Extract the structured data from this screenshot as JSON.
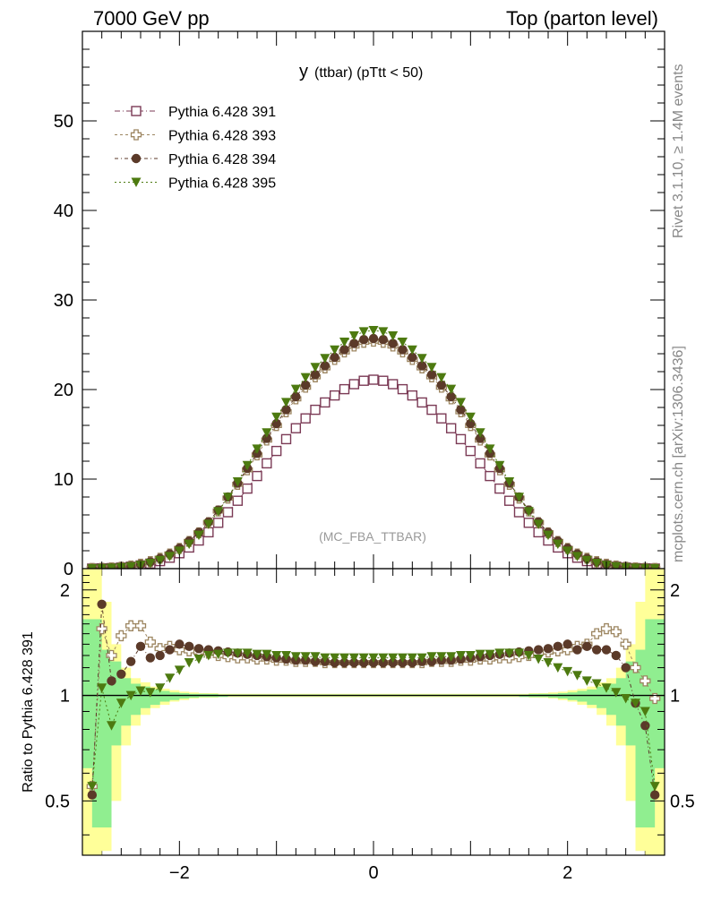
{
  "header": {
    "left": "7000 GeV pp",
    "right": "Top (parton level)"
  },
  "side_text": {
    "rivet": "Rivet 3.1.10, ≥ 1.4M events",
    "mcplots": "mcplots.cern.ch [arXiv:1306.3436]"
  },
  "chart_data": [
    {
      "type": "scatter",
      "title_main": "y",
      "title_sub": "(ttbar)  (pTtt < 50)",
      "annotation": "(MC_FBA_TTBAR)",
      "xlim": [
        -3.0,
        3.0
      ],
      "ylim": [
        0,
        60
      ],
      "yticks": [
        0,
        10,
        20,
        30,
        40,
        50
      ],
      "ytick_labels": [
        "0",
        "10",
        "20",
        "30",
        "40",
        "50"
      ],
      "legend_position": "top-left",
      "colors": {
        "s391": "#7b3a55",
        "s393": "#9c8560",
        "s394": "#5b3a29",
        "s395": "#4d7a10"
      },
      "x": [
        -2.9,
        -2.8,
        -2.7,
        -2.6,
        -2.5,
        -2.4,
        -2.3,
        -2.2,
        -2.1,
        -2.0,
        -1.9,
        -1.8,
        -1.7,
        -1.6,
        -1.5,
        -1.4,
        -1.3,
        -1.2,
        -1.1,
        -1.0,
        -0.9,
        -0.8,
        -0.7,
        -0.6,
        -0.5,
        -0.4,
        -0.3,
        -0.2,
        -0.1,
        0.0,
        0.1,
        0.2,
        0.3,
        0.4,
        0.5,
        0.6,
        0.7,
        0.8,
        0.9,
        1.0,
        1.1,
        1.2,
        1.3,
        1.4,
        1.5,
        1.6,
        1.7,
        1.8,
        1.9,
        2.0,
        2.1,
        2.2,
        2.3,
        2.4,
        2.5,
        2.6,
        2.7,
        2.8,
        2.9
      ],
      "series": [
        {
          "name": "Pythia 6.428 391",
          "marker": "open-square",
          "values": [
            0.01,
            0.03,
            0.06,
            0.12,
            0.22,
            0.36,
            0.56,
            0.84,
            1.22,
            1.72,
            2.36,
            3.14,
            4.06,
            5.12,
            6.3,
            7.58,
            8.94,
            10.34,
            11.76,
            13.14,
            14.46,
            15.68,
            16.78,
            17.74,
            18.56,
            19.34,
            20.04,
            20.6,
            20.98,
            21.1,
            20.98,
            20.6,
            20.04,
            19.34,
            18.56,
            17.74,
            16.78,
            15.68,
            14.46,
            13.14,
            11.76,
            10.34,
            8.94,
            7.58,
            6.3,
            5.12,
            4.06,
            3.14,
            2.36,
            1.72,
            1.22,
            0.84,
            0.56,
            0.36,
            0.22,
            0.12,
            0.06,
            0.03,
            0.01
          ]
        },
        {
          "name": "Pythia 6.428 393",
          "marker": "open-cross",
          "values": [
            0.02,
            0.04,
            0.08,
            0.16,
            0.3,
            0.5,
            0.78,
            1.16,
            1.64,
            2.26,
            3.04,
            4.0,
            5.14,
            6.44,
            7.88,
            9.42,
            11.04,
            12.7,
            14.36,
            15.98,
            17.52,
            18.96,
            20.26,
            21.42,
            22.42,
            23.36,
            24.2,
            24.86,
            25.28,
            25.4,
            25.28,
            24.86,
            24.2,
            23.36,
            22.42,
            21.42,
            20.26,
            18.96,
            17.52,
            15.98,
            14.36,
            12.7,
            11.04,
            9.42,
            7.88,
            6.44,
            5.14,
            4.0,
            3.04,
            2.26,
            1.64,
            1.16,
            0.78,
            0.5,
            0.3,
            0.16,
            0.08,
            0.04,
            0.02
          ]
        },
        {
          "name": "Pythia 6.428 394",
          "marker": "filled-circle",
          "values": [
            0.02,
            0.05,
            0.08,
            0.15,
            0.28,
            0.48,
            0.76,
            1.14,
            1.64,
            2.28,
            3.08,
            4.06,
            5.22,
            6.54,
            8.0,
            9.56,
            11.2,
            12.88,
            14.56,
            16.2,
            17.76,
            19.2,
            20.5,
            21.66,
            22.66,
            23.6,
            24.46,
            25.14,
            25.58,
            25.7,
            25.58,
            25.14,
            24.46,
            23.6,
            22.66,
            21.66,
            20.5,
            19.2,
            17.76,
            16.2,
            14.56,
            12.88,
            11.2,
            9.56,
            8.0,
            6.54,
            5.22,
            4.06,
            3.08,
            2.28,
            1.64,
            1.14,
            0.76,
            0.48,
            0.28,
            0.15,
            0.08,
            0.05,
            0.02
          ]
        },
        {
          "name": "Pythia 6.428 395",
          "marker": "filled-triangle-down",
          "values": [
            0.01,
            0.03,
            0.06,
            0.12,
            0.22,
            0.38,
            0.6,
            0.92,
            1.36,
            1.96,
            2.74,
            3.74,
            4.96,
            6.38,
            7.98,
            9.7,
            11.52,
            13.36,
            15.18,
            16.92,
            18.56,
            20.04,
            21.34,
            22.48,
            23.48,
            24.42,
            25.3,
            26.0,
            26.46,
            26.6,
            26.46,
            26.0,
            25.3,
            24.42,
            23.48,
            22.48,
            21.34,
            20.04,
            18.56,
            16.92,
            15.18,
            13.36,
            11.52,
            9.7,
            7.98,
            6.38,
            4.96,
            3.74,
            2.74,
            1.96,
            1.36,
            0.92,
            0.6,
            0.38,
            0.22,
            0.12,
            0.06,
            0.03,
            0.01
          ]
        }
      ]
    },
    {
      "type": "scatter",
      "ylabel": "Ratio to Pythia 6.428 391",
      "xlim": [
        -3.0,
        3.0
      ],
      "ylim": [
        0.35,
        2.3
      ],
      "yscale": "log",
      "xticks": [
        -2,
        0,
        2
      ],
      "xtick_labels": [
        "−2",
        "0",
        "2"
      ],
      "yticks": [
        0.5,
        1,
        2
      ],
      "ytick_labels": [
        "0.5",
        "1",
        "2"
      ],
      "reference_line": 1,
      "band_colors": {
        "inner": "#90ee90",
        "outer": "#ffff99"
      },
      "x": [
        -2.9,
        -2.8,
        -2.7,
        -2.6,
        -2.5,
        -2.4,
        -2.3,
        -2.2,
        -2.1,
        -2.0,
        -1.9,
        -1.8,
        -1.7,
        -1.6,
        -1.5,
        -1.4,
        -1.3,
        -1.2,
        -1.1,
        -1.0,
        -0.9,
        -0.8,
        -0.7,
        -0.6,
        -0.5,
        -0.4,
        -0.3,
        -0.2,
        -0.1,
        0.0,
        0.1,
        0.2,
        0.3,
        0.4,
        0.5,
        0.6,
        0.7,
        0.8,
        0.9,
        1.0,
        1.1,
        1.2,
        1.3,
        1.4,
        1.5,
        1.6,
        1.7,
        1.8,
        1.9,
        2.0,
        2.1,
        2.2,
        2.3,
        2.4,
        2.5,
        2.6,
        2.7,
        2.8,
        2.9
      ],
      "band": {
        "inner": [
          0.62,
          0.42,
          0.72,
          0.82,
          0.88,
          0.92,
          0.94,
          0.96,
          0.97,
          0.98,
          0.985,
          0.99,
          0.99,
          0.99,
          0.995,
          0.995,
          0.995,
          0.995,
          0.995,
          0.995,
          0.995,
          0.995,
          0.995,
          0.995,
          0.995,
          0.995,
          0.995,
          0.995,
          0.995,
          0.995,
          0.995,
          0.995,
          0.995,
          0.995,
          0.995,
          0.995,
          0.995,
          0.995,
          0.995,
          0.995,
          0.995,
          0.995,
          0.995,
          0.995,
          0.995,
          0.99,
          0.99,
          0.99,
          0.985,
          0.98,
          0.97,
          0.96,
          0.94,
          0.92,
          0.88,
          0.82,
          0.72,
          0.42,
          0.62
        ],
        "outer": [
          0.35,
          0.36,
          0.5,
          0.72,
          0.82,
          0.88,
          0.92,
          0.94,
          0.96,
          0.97,
          0.98,
          0.985,
          0.985,
          0.99,
          0.99,
          0.99,
          0.99,
          0.99,
          0.99,
          0.99,
          0.99,
          0.99,
          0.99,
          0.99,
          0.99,
          0.99,
          0.99,
          0.99,
          0.99,
          0.99,
          0.99,
          0.99,
          0.99,
          0.99,
          0.99,
          0.99,
          0.99,
          0.99,
          0.99,
          0.99,
          0.99,
          0.99,
          0.99,
          0.99,
          0.99,
          0.99,
          0.985,
          0.985,
          0.98,
          0.97,
          0.96,
          0.94,
          0.92,
          0.88,
          0.82,
          0.72,
          0.5,
          0.36,
          0.35
        ],
        "inner_hi": [
          1.65,
          1.35,
          1.25,
          1.12,
          1.08,
          1.06,
          1.04,
          1.03,
          1.02,
          1.015,
          1.01,
          1.01,
          1.01,
          1.005,
          1.005,
          1.005,
          1.005,
          1.005,
          1.005,
          1.005,
          1.005,
          1.005,
          1.005,
          1.005,
          1.005,
          1.005,
          1.005,
          1.005,
          1.005,
          1.005,
          1.005,
          1.005,
          1.005,
          1.005,
          1.005,
          1.005,
          1.005,
          1.005,
          1.005,
          1.005,
          1.005,
          1.005,
          1.005,
          1.005,
          1.005,
          1.005,
          1.01,
          1.01,
          1.01,
          1.015,
          1.02,
          1.03,
          1.04,
          1.06,
          1.08,
          1.12,
          1.25,
          1.35,
          1.65
        ],
        "outer_hi": [
          2.3,
          1.85,
          1.4,
          1.2,
          1.12,
          1.09,
          1.06,
          1.045,
          1.035,
          1.025,
          1.02,
          1.015,
          1.015,
          1.01,
          1.01,
          1.01,
          1.01,
          1.01,
          1.01,
          1.01,
          1.01,
          1.01,
          1.01,
          1.01,
          1.01,
          1.01,
          1.01,
          1.01,
          1.01,
          1.01,
          1.01,
          1.01,
          1.01,
          1.01,
          1.01,
          1.01,
          1.01,
          1.01,
          1.01,
          1.01,
          1.01,
          1.01,
          1.01,
          1.01,
          1.01,
          1.01,
          1.015,
          1.015,
          1.02,
          1.025,
          1.035,
          1.045,
          1.06,
          1.09,
          1.12,
          1.2,
          1.4,
          1.85,
          2.3
        ]
      },
      "series": [
        {
          "name": "Pythia 6.428 393",
          "marker": "open-cross",
          "values": [
            0.55,
            1.55,
            1.3,
            1.48,
            1.58,
            1.58,
            1.42,
            1.36,
            1.38,
            1.35,
            1.34,
            1.33,
            1.32,
            1.3,
            1.29,
            1.28,
            1.28,
            1.27,
            1.27,
            1.26,
            1.26,
            1.25,
            1.25,
            1.25,
            1.24,
            1.24,
            1.24,
            1.24,
            1.24,
            1.24,
            1.24,
            1.24,
            1.24,
            1.24,
            1.24,
            1.25,
            1.25,
            1.25,
            1.26,
            1.26,
            1.27,
            1.27,
            1.28,
            1.28,
            1.29,
            1.3,
            1.32,
            1.33,
            1.34,
            1.35,
            1.38,
            1.4,
            1.5,
            1.55,
            1.52,
            1.4,
            1.2,
            1.1,
            0.98
          ]
        },
        {
          "name": "Pythia 6.428 394",
          "marker": "filled-circle",
          "values": [
            0.52,
            1.82,
            1.1,
            1.15,
            1.25,
            1.38,
            1.28,
            1.3,
            1.35,
            1.4,
            1.38,
            1.36,
            1.35,
            1.34,
            1.33,
            1.32,
            1.31,
            1.3,
            1.29,
            1.28,
            1.27,
            1.26,
            1.26,
            1.25,
            1.25,
            1.24,
            1.24,
            1.24,
            1.24,
            1.24,
            1.24,
            1.24,
            1.24,
            1.24,
            1.25,
            1.25,
            1.26,
            1.26,
            1.27,
            1.28,
            1.29,
            1.3,
            1.31,
            1.32,
            1.33,
            1.34,
            1.35,
            1.36,
            1.38,
            1.4,
            1.35,
            1.38,
            1.35,
            1.35,
            1.3,
            1.2,
            0.95,
            0.82,
            0.52
          ]
        },
        {
          "name": "Pythia 6.428 395",
          "marker": "filled-triangle-down",
          "values": [
            0.55,
            1.05,
            0.82,
            0.95,
            1.0,
            1.03,
            1.02,
            1.05,
            1.12,
            1.18,
            1.24,
            1.27,
            1.3,
            1.31,
            1.32,
            1.32,
            1.32,
            1.31,
            1.31,
            1.3,
            1.3,
            1.29,
            1.29,
            1.29,
            1.28,
            1.28,
            1.28,
            1.28,
            1.28,
            1.28,
            1.28,
            1.28,
            1.28,
            1.28,
            1.28,
            1.29,
            1.29,
            1.29,
            1.3,
            1.3,
            1.31,
            1.31,
            1.32,
            1.32,
            1.32,
            1.3,
            1.27,
            1.24,
            1.2,
            1.17,
            1.14,
            1.1,
            1.08,
            1.05,
            1.02,
            0.98,
            0.95,
            0.9,
            0.55
          ]
        }
      ]
    }
  ]
}
